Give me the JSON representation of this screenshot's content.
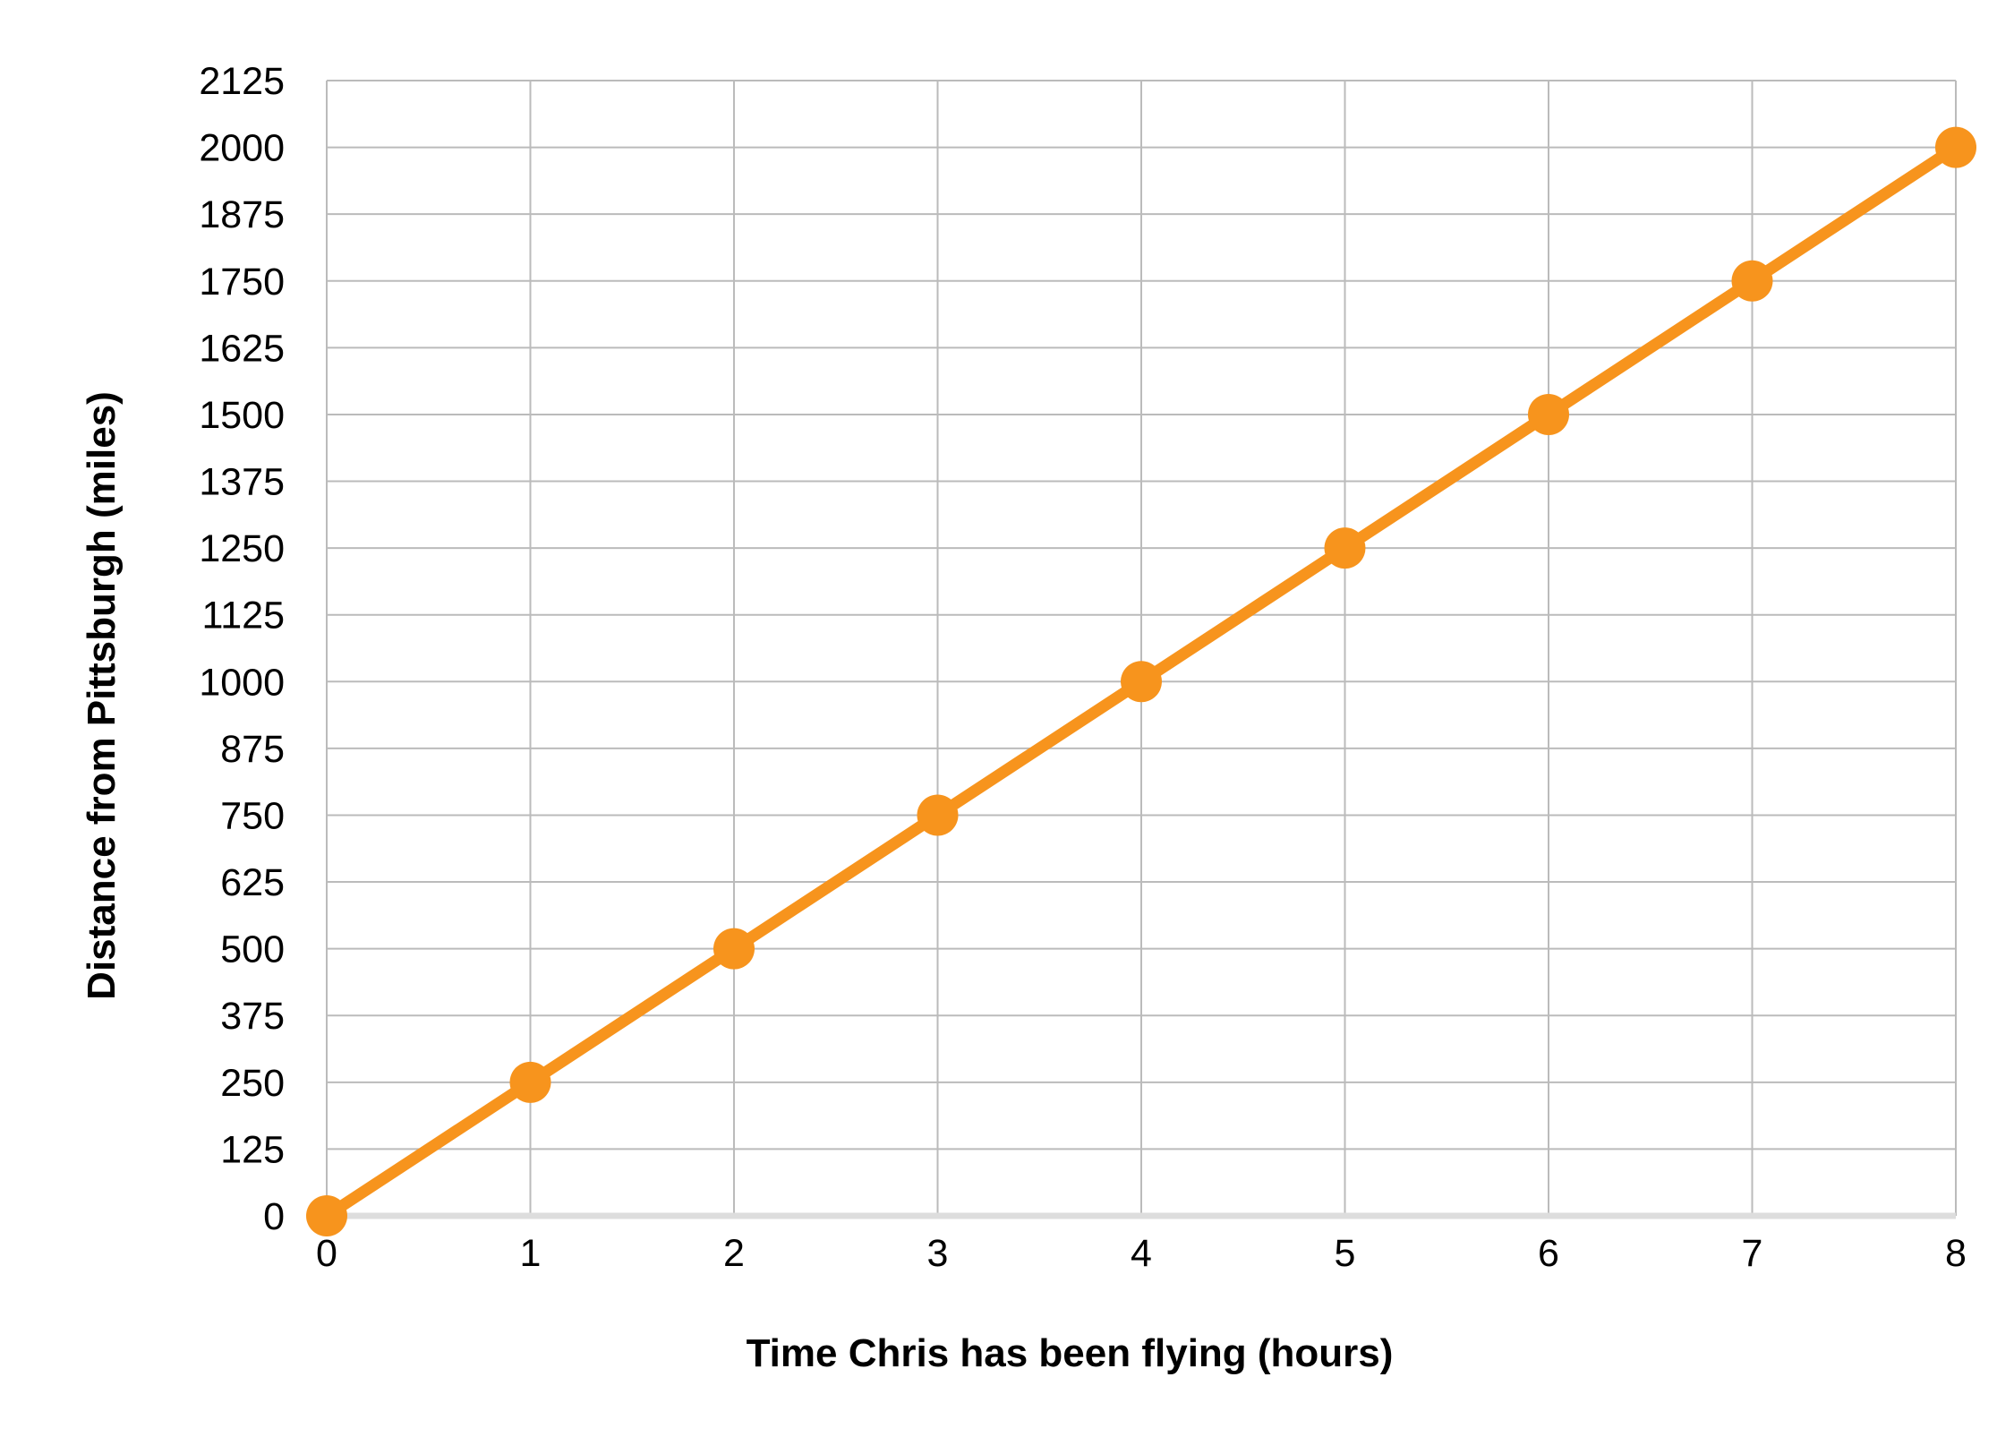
{
  "chart_data": {
    "type": "line",
    "title": "",
    "xlabel": "Time Chris has been flying (hours)",
    "ylabel": "Distance from Pittsburgh (miles)",
    "xlim": [
      0,
      8
    ],
    "ylim": [
      0,
      2125
    ],
    "x_ticks": [
      0,
      1,
      2,
      3,
      4,
      5,
      6,
      7,
      8
    ],
    "y_ticks": [
      0,
      125,
      250,
      375,
      500,
      625,
      750,
      875,
      1000,
      1125,
      1250,
      1375,
      1500,
      1625,
      1750,
      1875,
      2000,
      2125
    ],
    "x_tick_labels": [
      "0",
      "1",
      "2",
      "3",
      "4",
      "5",
      "6",
      "7",
      "8"
    ],
    "y_tick_labels": [
      "0",
      "125",
      "250",
      "375",
      "500",
      "625",
      "750",
      "875",
      "1000",
      "1125",
      "1250",
      "1375",
      "1500",
      "1625",
      "1750",
      "1875",
      "2000",
      "2125"
    ],
    "grid": true,
    "legend": "none",
    "series": [
      {
        "color": "#F7941D",
        "marker": "circle",
        "points": [
          {
            "x": 0,
            "y": 0
          },
          {
            "x": 1,
            "y": 250
          },
          {
            "x": 2,
            "y": 500
          },
          {
            "x": 3,
            "y": 750
          },
          {
            "x": 4,
            "y": 1000
          },
          {
            "x": 5,
            "y": 1250
          },
          {
            "x": 6,
            "y": 1500
          },
          {
            "x": 7,
            "y": 1750
          },
          {
            "x": 8,
            "y": 2000
          }
        ]
      }
    ],
    "colors": {
      "series": "#F7941D",
      "grid": "#BBBBBB",
      "baseline": "#DDDDDD",
      "text": "#000000"
    }
  }
}
